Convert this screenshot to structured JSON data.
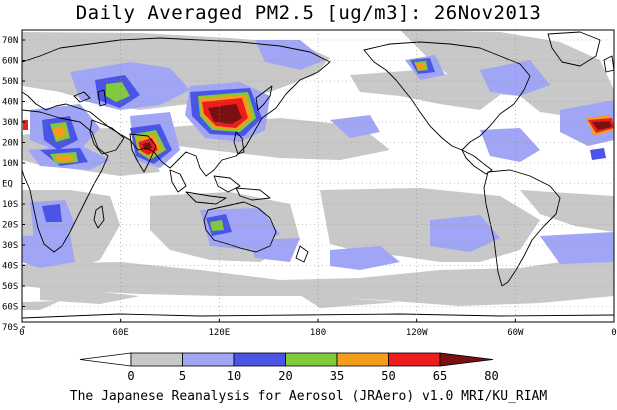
{
  "title": "Daily Averaged PM2.5 [ug/m3]: 26Nov2013",
  "footer": "The Japanese Reanalysis for Aerosol (JRAero) v1.0 MRI/KU_RIAM",
  "lat_labels": [
    "70N",
    "60N",
    "50N",
    "40N",
    "30N",
    "20N",
    "10N",
    "EQ",
    "10S",
    "20S",
    "30S",
    "40S",
    "50S",
    "60S",
    "70S"
  ],
  "lon_labels": [
    "0",
    "60E",
    "120E",
    "180",
    "120W",
    "60W",
    "0"
  ],
  "colorbar": {
    "thresholds": [
      "0",
      "5",
      "10",
      "20",
      "35",
      "50",
      "65",
      "80"
    ],
    "colors": [
      "#ffffff",
      "#c8c8c8",
      "#a0a6f5",
      "#4a55e8",
      "#7fcb3a",
      "#f59c1a",
      "#ee1c1c",
      "#7a1010"
    ]
  },
  "field_colors": {
    "light_gray": "#c8c8c8",
    "light_blue": "#a0a6f5",
    "blue": "#4a55e8",
    "green": "#7fcb3a",
    "orange": "#f59c1a",
    "red": "#ee1c1c",
    "dark_red": "#7a1010"
  }
}
